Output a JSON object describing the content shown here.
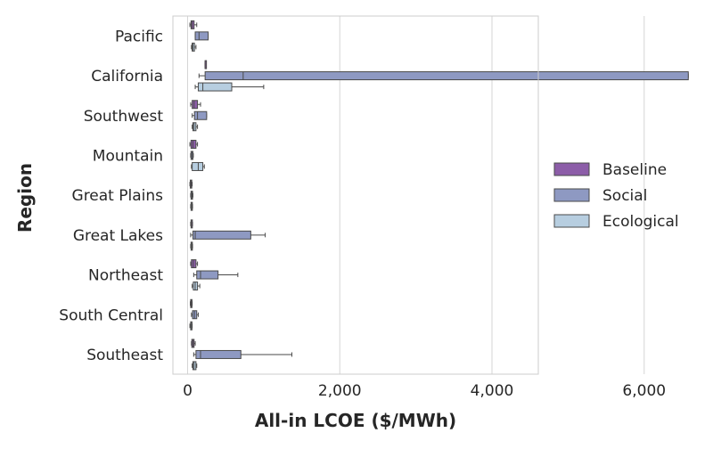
{
  "chart_data": {
    "type": "boxplot",
    "orientation": "horizontal",
    "xlabel": "All-in LCOE ($/MWh)",
    "ylabel": "Region",
    "xlim": [
      -300,
      6900
    ],
    "xticks": [
      0,
      2000,
      4000,
      6000
    ],
    "xtick_labels": [
      "0",
      "2,000",
      "4,000",
      "6,000"
    ],
    "grid": "vertical",
    "legend_position": "right",
    "categories": [
      "Pacific",
      "California",
      "Southwest",
      "Mountain",
      "Great Plains",
      "Great Lakes",
      "Northeast",
      "South Central",
      "Southeast"
    ],
    "series": [
      {
        "name": "Baseline",
        "color": "#8c5da8",
        "boxes": [
          {
            "whislo": 30,
            "q1": 45,
            "med": 60,
            "q3": 85,
            "whishi": 120
          },
          {
            "whislo": 230,
            "q1": 230,
            "med": 230,
            "q3": 230,
            "whishi": 230
          },
          {
            "whislo": 40,
            "q1": 60,
            "med": 85,
            "q3": 130,
            "whishi": 170
          },
          {
            "whislo": 30,
            "q1": 45,
            "med": 70,
            "q3": 110,
            "whishi": 130
          },
          {
            "whislo": 30,
            "q1": 35,
            "med": 45,
            "q3": 55,
            "whishi": 60
          },
          {
            "whislo": 40,
            "q1": 45,
            "med": 50,
            "q3": 60,
            "whishi": 65
          },
          {
            "whislo": 40,
            "q1": 50,
            "med": 75,
            "q3": 110,
            "whishi": 130
          },
          {
            "whislo": 35,
            "q1": 40,
            "med": 50,
            "q3": 55,
            "whishi": 60
          },
          {
            "whislo": 50,
            "q1": 55,
            "med": 70,
            "q3": 85,
            "whishi": 100
          }
        ]
      },
      {
        "name": "Social",
        "color": "#8e99c2",
        "boxes": [
          {
            "whislo": 100,
            "q1": 100,
            "med": 150,
            "q3": 270,
            "whishi": 270
          },
          {
            "whislo": 150,
            "q1": 230,
            "med": 730,
            "q3": 6580,
            "whishi": 6580
          },
          {
            "whislo": 60,
            "q1": 90,
            "med": 130,
            "q3": 250,
            "whishi": 250
          },
          {
            "whislo": 40,
            "q1": 45,
            "med": 55,
            "q3": 70,
            "whishi": 75
          },
          {
            "whislo": 40,
            "q1": 45,
            "med": 55,
            "q3": 65,
            "whishi": 70
          },
          {
            "whislo": 40,
            "q1": 70,
            "med": 100,
            "q3": 830,
            "whishi": 1020
          },
          {
            "whislo": 80,
            "q1": 120,
            "med": 170,
            "q3": 400,
            "whishi": 660
          },
          {
            "whislo": 50,
            "q1": 65,
            "med": 90,
            "q3": 120,
            "whishi": 140
          },
          {
            "whislo": 80,
            "q1": 110,
            "med": 170,
            "q3": 700,
            "whishi": 1370
          }
        ]
      },
      {
        "name": "Ecological",
        "color": "#b7cee0",
        "boxes": [
          {
            "whislo": 50,
            "q1": 60,
            "med": 70,
            "q3": 90,
            "whishi": 110
          },
          {
            "whislo": 100,
            "q1": 140,
            "med": 200,
            "q3": 580,
            "whishi": 1000
          },
          {
            "whislo": 60,
            "q1": 70,
            "med": 85,
            "q3": 110,
            "whishi": 130
          },
          {
            "whislo": 50,
            "q1": 60,
            "med": 140,
            "q3": 200,
            "whishi": 220
          },
          {
            "whislo": 40,
            "q1": 45,
            "med": 55,
            "q3": 60,
            "whishi": 65
          },
          {
            "whislo": 40,
            "q1": 45,
            "med": 55,
            "q3": 60,
            "whishi": 65
          },
          {
            "whislo": 60,
            "q1": 75,
            "med": 100,
            "q3": 130,
            "whishi": 160
          },
          {
            "whislo": 30,
            "q1": 40,
            "med": 45,
            "q3": 55,
            "whishi": 60
          },
          {
            "whislo": 60,
            "q1": 70,
            "med": 85,
            "q3": 110,
            "whishi": 120
          }
        ]
      }
    ]
  }
}
